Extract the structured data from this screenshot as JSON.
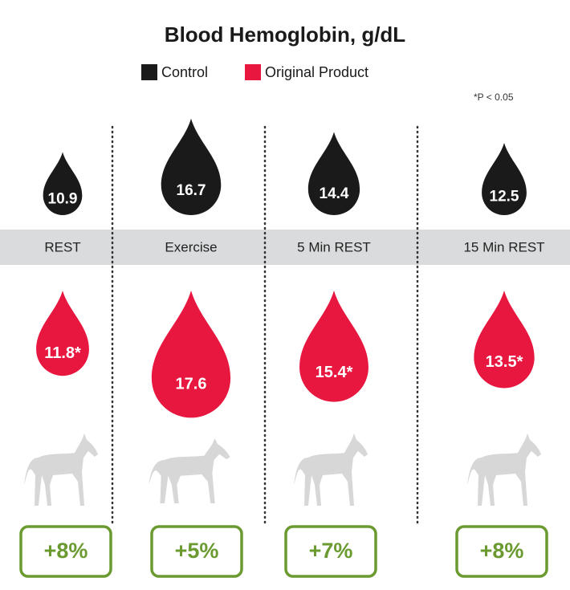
{
  "chart_data": {
    "type": "drop",
    "title": "Blood Hemoglobin, g/dL",
    "annotation": "*P < 0.05",
    "categories": [
      "REST",
      "Exercise",
      "5 Min REST",
      "15 Min REST"
    ],
    "series": [
      {
        "name": "Control",
        "color": "#1a1a1a",
        "values": [
          10.9,
          16.7,
          14.4,
          12.5
        ]
      },
      {
        "name": "Original Product",
        "color": "#e8173f",
        "values": [
          11.8,
          17.6,
          15.4,
          13.5
        ],
        "value_labels": [
          "11.8*",
          "17.6",
          "15.4*",
          "13.5*"
        ]
      }
    ],
    "changes": {
      "color": "#6a9a30",
      "values": [
        8,
        5,
        7,
        8
      ],
      "value_labels": [
        "+8%",
        "+5%",
        "+7%",
        "+8%"
      ]
    }
  }
}
